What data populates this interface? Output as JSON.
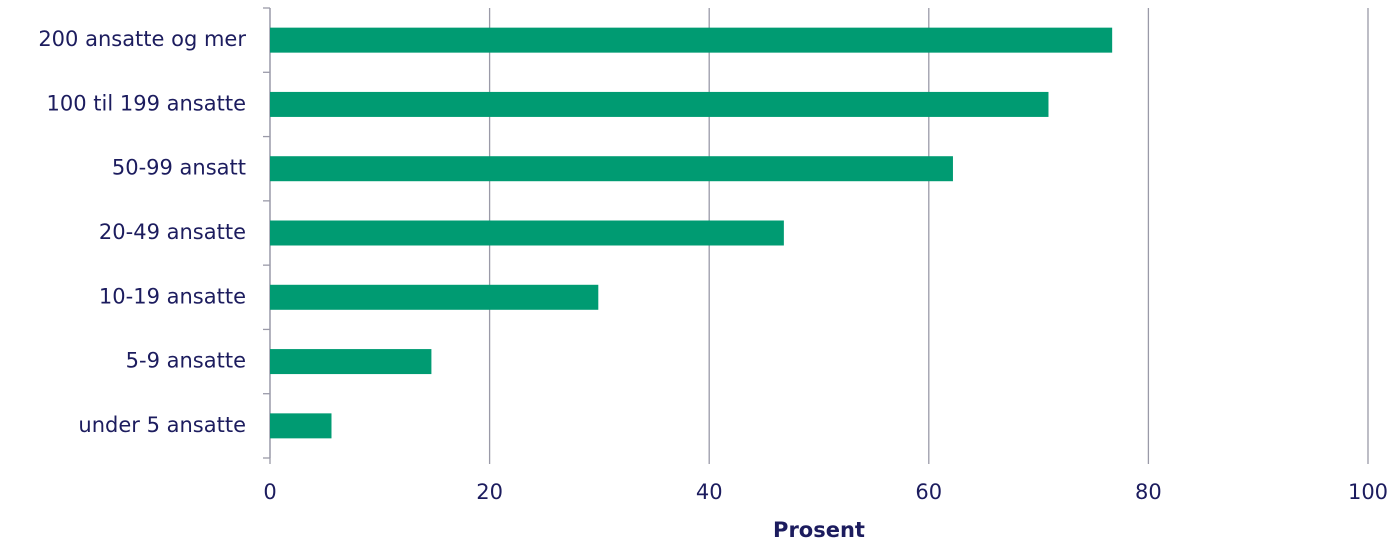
{
  "chart_data": {
    "type": "barh",
    "categories": [
      "200 ansatte og mer",
      "100 til 199 ansatte",
      "50-99 ansatt",
      "20-49 ansatte",
      "10-19 ansatte",
      "5-9 ansatte",
      "under 5 ansatte"
    ],
    "values": [
      76.7,
      70.9,
      62.2,
      46.8,
      29.9,
      14.7,
      5.6
    ],
    "color": "#009b72",
    "xlabel": "Prosent",
    "xlim": [
      0,
      100
    ],
    "xticks": [
      0,
      20,
      40,
      60,
      80,
      100
    ],
    "grid": true
  }
}
